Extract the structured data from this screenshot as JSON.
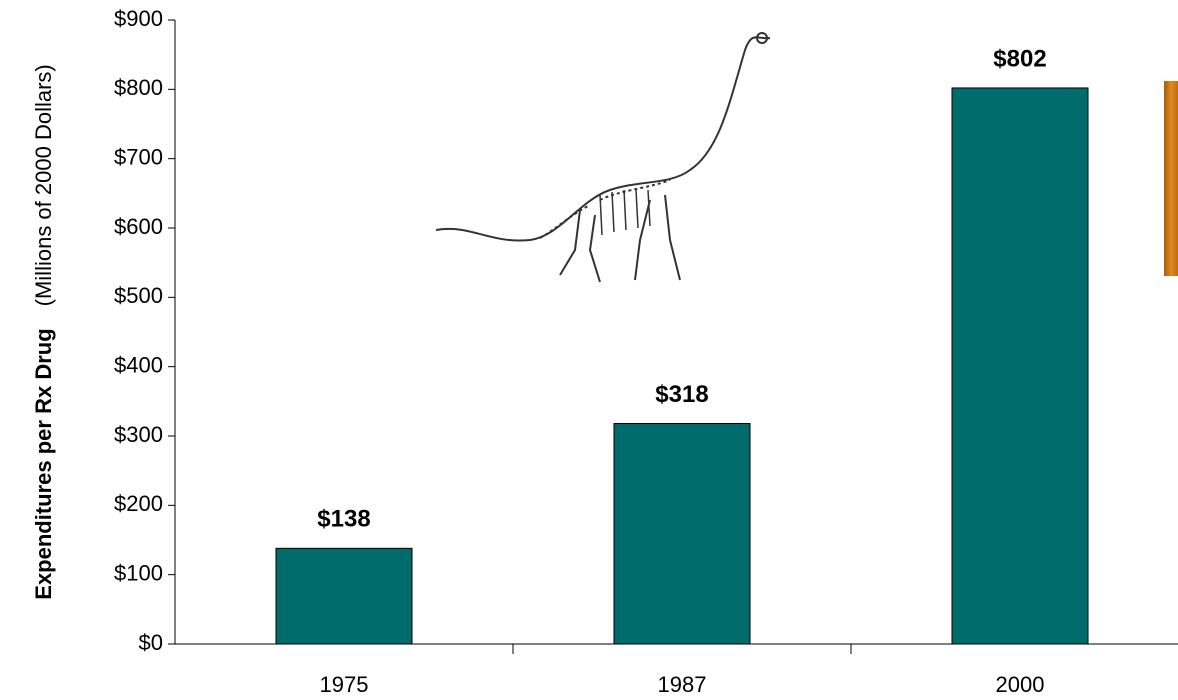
{
  "chart_data": {
    "type": "bar",
    "y_label": "Expenditures per Rx Drug",
    "y_label_note": "(Millions of 2000 Dollars)",
    "categories": [
      "1975",
      "1987",
      "2000"
    ],
    "values": [
      138,
      318,
      802
    ],
    "value_labels": [
      "$138",
      "$318",
      "$802"
    ],
    "color": "#006b6b",
    "ylim": [
      0,
      900
    ],
    "yticks": [
      {
        "value": 0,
        "label": "$0"
      },
      {
        "value": 100,
        "label": "$100"
      },
      {
        "value": 200,
        "label": "$200"
      },
      {
        "value": 300,
        "label": "$300"
      },
      {
        "value": 400,
        "label": "$400"
      },
      {
        "value": 500,
        "label": "$500"
      },
      {
        "value": 600,
        "label": "$600"
      },
      {
        "value": 700,
        "label": "$700"
      },
      {
        "value": 800,
        "label": "$800"
      },
      {
        "value": 900,
        "label": "$900"
      }
    ]
  }
}
